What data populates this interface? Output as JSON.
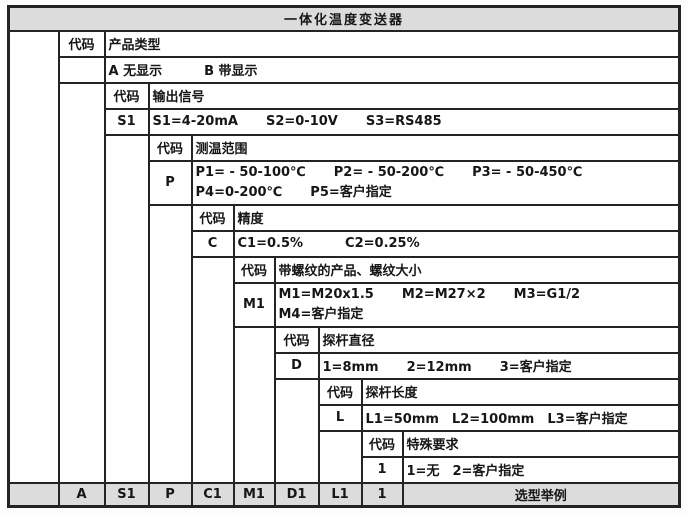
{
  "title": "一体化温度变送器",
  "code_header": "代码",
  "levels": [
    {
      "label": "产品类型",
      "code": "",
      "options": [
        [
          "A 无显示",
          "B 带显示"
        ]
      ]
    },
    {
      "label": "输出信号",
      "code": "S1",
      "options": [
        [
          "S1=4-20mA",
          "S2=0-10V",
          "S3=RS485"
        ]
      ]
    },
    {
      "label": "测温范围",
      "code": "P",
      "options": [
        [
          "P1= - 50-100℃",
          "P2= - 50-200℃",
          "P3= - 50-450℃"
        ],
        [
          "P4=0-200℃",
          "P5=客户指定"
        ]
      ]
    },
    {
      "label": "精度",
      "code": "C",
      "options": [
        [
          "C1=0.5%",
          "C2=0.25%"
        ]
      ]
    },
    {
      "label": "带螺纹的产品、螺纹大小",
      "code": "M1",
      "options": [
        [
          "M1=M20x1.5",
          "M2=M27×2",
          "M3=G1/2"
        ],
        [
          "M4=客户指定"
        ]
      ]
    },
    {
      "label": "探杆直径",
      "code": "D",
      "options": [
        [
          "1=8mm",
          "2=12mm",
          "3=客户指定"
        ]
      ]
    },
    {
      "label": "探杆长度",
      "code": "L",
      "options": [
        [
          "L1=50mm",
          "L2=100mm",
          "L3=客户指定"
        ]
      ]
    },
    {
      "label": "特殊要求",
      "code": "1",
      "options": [
        [
          "1=无",
          "2=客户指定"
        ]
      ]
    }
  ],
  "footer": {
    "codes": [
      "A",
      "S1",
      "P",
      "C1",
      "M1",
      "D1",
      "L1",
      "1"
    ],
    "label": "选型举例"
  },
  "colors": {
    "header_bg": "#dcdcdc",
    "border": "#242424",
    "background": "#ffffff"
  }
}
